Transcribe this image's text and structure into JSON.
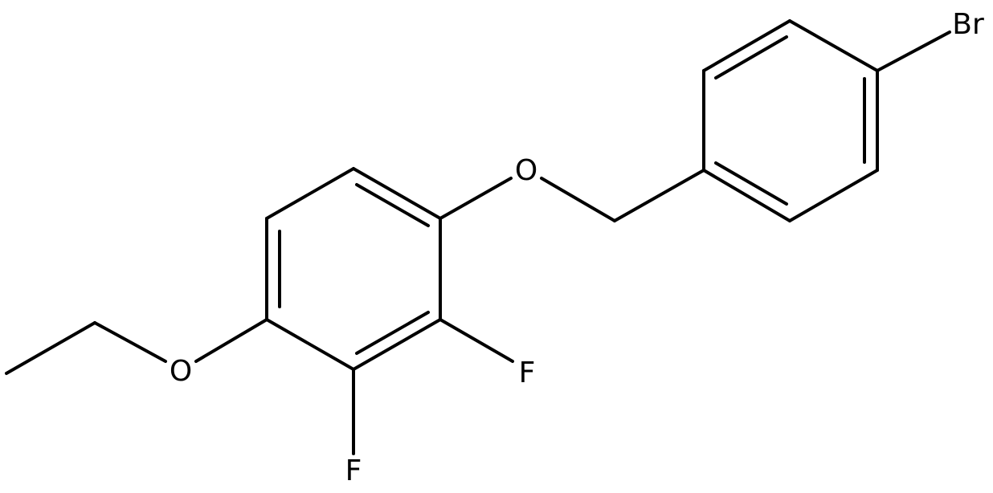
{
  "atoms": {
    "bromine": "Br",
    "ether_oxygen": "O",
    "ethoxy_oxygen": "O",
    "fluorine_1": "F",
    "fluorine_2": "F"
  }
}
